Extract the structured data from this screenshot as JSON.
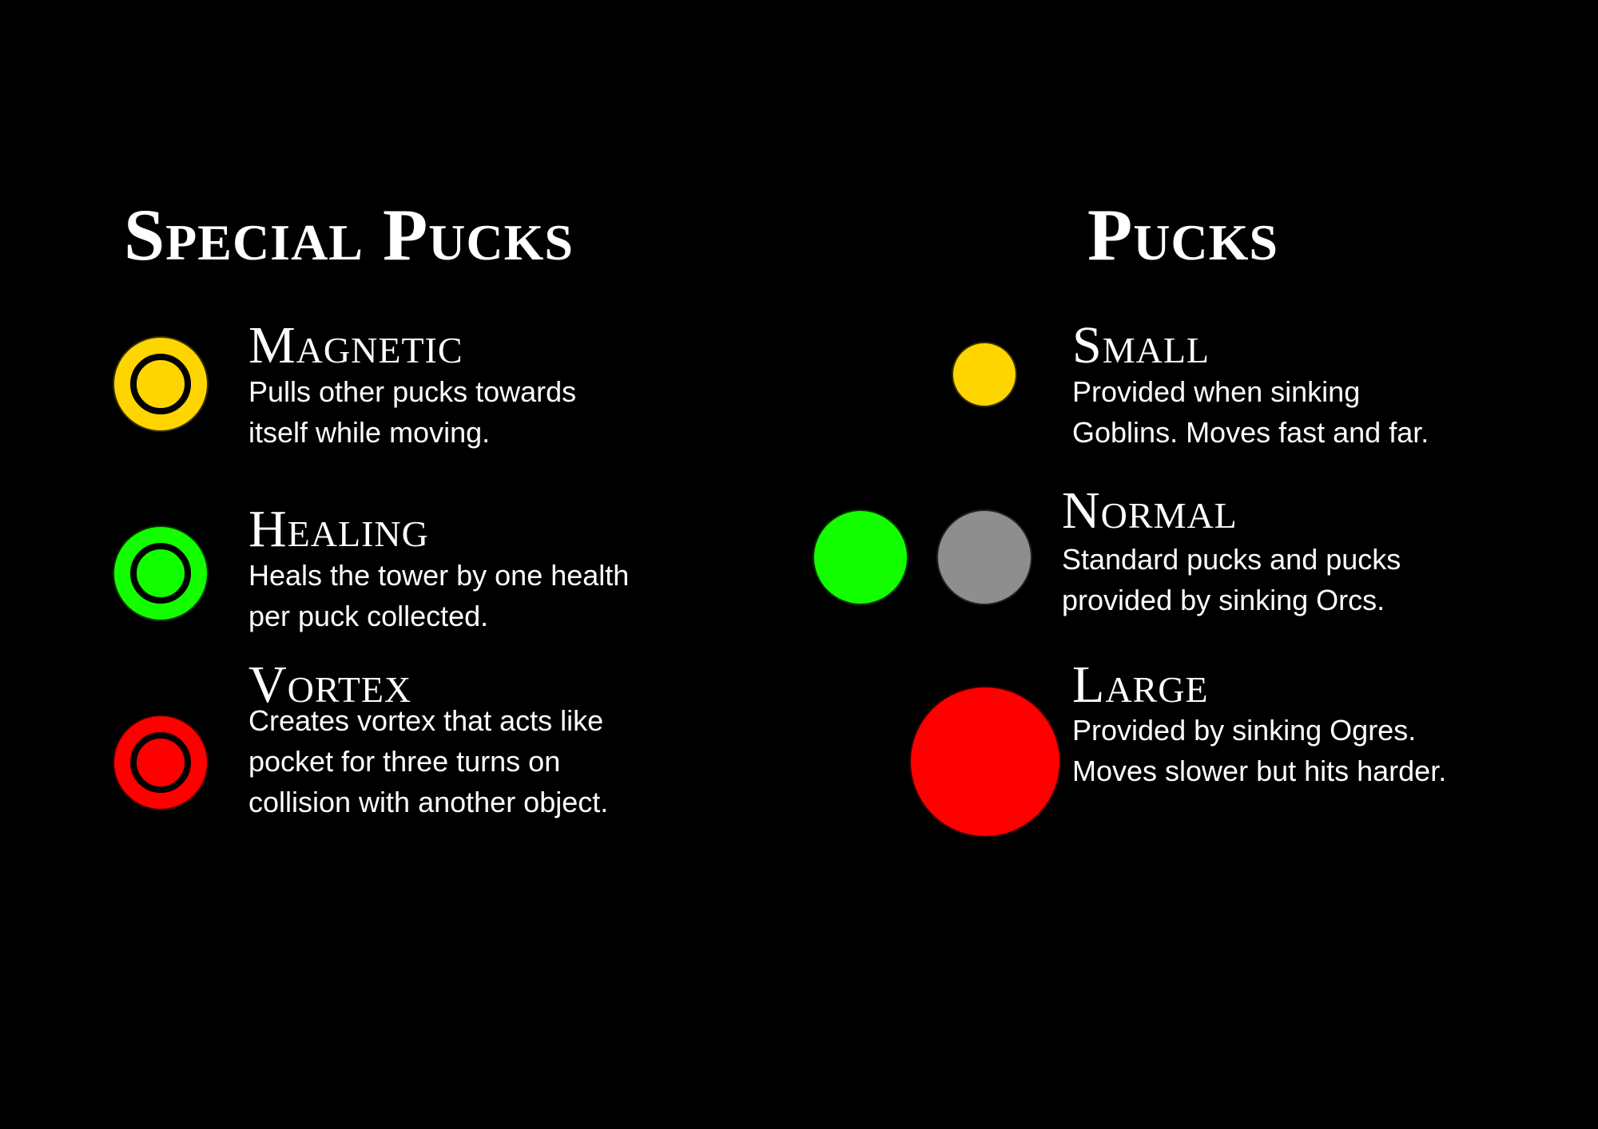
{
  "special": {
    "title": "Special Pucks",
    "items": [
      {
        "name": "Magnetic",
        "desc": "Pulls other pucks towards itself while moving.",
        "color": "#FFD500"
      },
      {
        "name": "Healing",
        "desc": "Heals the tower by one health per puck collected.",
        "color": "#13FF00"
      },
      {
        "name": "Vortex",
        "desc": "Creates vortex that acts like pocket for three turns on collision with another object.",
        "color": "#FF0000"
      }
    ]
  },
  "pucks": {
    "title": "Pucks",
    "items": [
      {
        "name": "Small",
        "desc": "Provided when sinking Goblins. Moves fast and far.",
        "color": "#FFD500"
      },
      {
        "name": "Normal",
        "desc": "Standard pucks and pucks provided by sinking Orcs.",
        "colors": [
          "#13FF00",
          "#8E8E8E"
        ]
      },
      {
        "name": "Large",
        "desc": "Provided by sinking Ogres. Moves slower but hits harder.",
        "color": "#FF0000"
      }
    ]
  }
}
